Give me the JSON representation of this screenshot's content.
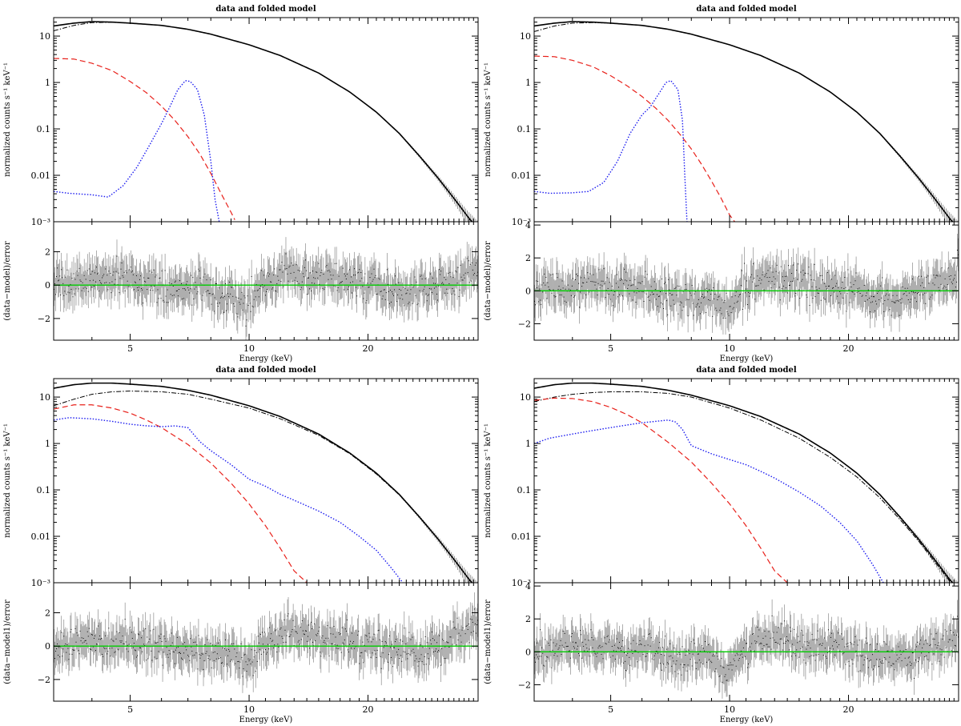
{
  "figure": {
    "description_panels": [
      "top-left",
      "top-right",
      "bottom-left",
      "bottom-right"
    ]
  },
  "colors": {
    "data": "#000000",
    "residual": "#8c8c8c",
    "comp_dashed": "#e8201a",
    "comp_dotted": "#1c1cf0",
    "zero_line": "#00cc00"
  },
  "chart_data": [
    {
      "type": "line",
      "panel": "top-left",
      "title": "data and folded model",
      "xlabel": "Energy (keV)",
      "ylabel_top": "normalized counts s⁻¹ keV⁻¹",
      "ylabel_bottom": "(data−model)/error",
      "xscale": "log",
      "yscale_top": "log",
      "xlim": [
        3.2,
        38
      ],
      "ylim_top": [
        0.001,
        25
      ],
      "ylim_bottom": [
        -3.3,
        3.8
      ],
      "x_ticks": [
        "5",
        "10",
        "20"
      ],
      "x_tick_values": [
        5,
        10,
        20
      ],
      "y_ticks_top": [
        "10",
        "1",
        "0.1",
        "0.01",
        "10⁻³"
      ],
      "y_tick_values_top": [
        10,
        1,
        0.1,
        0.01,
        0.001
      ],
      "y_ticks_bottom": [
        "2",
        "0",
        "−2"
      ],
      "y_tick_values_bottom": [
        2,
        0,
        -2
      ],
      "series": [
        {
          "name": "total",
          "style": "solid",
          "x": [
            3.2,
            3.6,
            4.0,
            4.5,
            5,
            6,
            7,
            8,
            10,
            12,
            15,
            18,
            21,
            24,
            27,
            30,
            33,
            36,
            38
          ],
          "y": [
            16.5,
            19,
            20.5,
            20,
            19,
            17,
            14,
            11,
            6.5,
            3.8,
            1.6,
            0.62,
            0.23,
            0.08,
            0.026,
            0.009,
            0.0032,
            0.0012,
            0.0007
          ]
        },
        {
          "name": "main-component",
          "style": "dashdot",
          "x": [
            3.2,
            3.6,
            4.0,
            4.5,
            5,
            6,
            7,
            8,
            10,
            12,
            15,
            18,
            21,
            24,
            27,
            30,
            33,
            36,
            38
          ],
          "y": [
            13,
            17,
            19.5,
            19.8,
            19,
            17,
            14,
            11,
            6.5,
            3.8,
            1.6,
            0.62,
            0.23,
            0.08,
            0.026,
            0.009,
            0.0032,
            0.0012,
            0.0007
          ]
        },
        {
          "name": "dashed-component",
          "style": "dashed",
          "x": [
            3.2,
            3.6,
            4.0,
            4.5,
            5,
            5.5,
            6,
            6.5,
            7,
            7.5,
            8,
            8.5,
            9,
            9.2
          ],
          "y": [
            3.3,
            3.2,
            2.6,
            1.8,
            1.05,
            0.6,
            0.31,
            0.15,
            0.068,
            0.029,
            0.011,
            0.004,
            0.0016,
            0.0011
          ]
        },
        {
          "name": "dotted-component",
          "style": "dotted",
          "x": [
            3.2,
            3.5,
            4.0,
            4.4,
            4.8,
            5.2,
            5.6,
            6.0,
            6.3,
            6.6,
            6.9,
            7.1,
            7.4,
            7.7,
            8.0,
            8.2,
            8.4
          ],
          "y": [
            0.0045,
            0.0041,
            0.0038,
            0.0034,
            0.006,
            0.015,
            0.045,
            0.13,
            0.3,
            0.7,
            1.1,
            1.05,
            0.7,
            0.2,
            0.02,
            0.003,
            0.001
          ]
        }
      ]
    },
    {
      "type": "line",
      "panel": "top-right",
      "title": "data and folded model",
      "xlabel": "Energy (keV)",
      "ylabel_top": "normalized counts s⁻¹ keV⁻¹",
      "ylabel_bottom": "(data−model)/error",
      "xscale": "log",
      "yscale_top": "log",
      "xlim": [
        3.2,
        38
      ],
      "ylim_top": [
        0.001,
        25
      ],
      "ylim_bottom": [
        -3.0,
        4.2
      ],
      "x_ticks": [
        "5",
        "10",
        "20"
      ],
      "x_tick_values": [
        5,
        10,
        20
      ],
      "y_ticks_top": [
        "10",
        "1",
        "0.1",
        "0.01",
        "10⁻³"
      ],
      "y_tick_values_top": [
        10,
        1,
        0.1,
        0.01,
        0.001
      ],
      "y_ticks_bottom": [
        "4",
        "2",
        "0",
        "−2"
      ],
      "y_tick_values_bottom": [
        4,
        2,
        0,
        -2
      ],
      "series": [
        {
          "name": "total",
          "style": "solid",
          "x": [
            3.2,
            3.6,
            4.0,
            4.5,
            5,
            6,
            7,
            8,
            10,
            12,
            15,
            18,
            21,
            24,
            27,
            30,
            33,
            36,
            38
          ],
          "y": [
            16.5,
            19,
            20.5,
            20,
            19,
            17,
            14,
            11,
            6.5,
            3.8,
            1.6,
            0.62,
            0.23,
            0.08,
            0.026,
            0.009,
            0.0032,
            0.0012,
            0.0007
          ]
        },
        {
          "name": "main-component",
          "style": "dashdot",
          "x": [
            3.2,
            3.6,
            4.0,
            4.5,
            5,
            6,
            7,
            8,
            10,
            12,
            15,
            18,
            21,
            24,
            27,
            30,
            33,
            36,
            38
          ],
          "y": [
            12.5,
            16.5,
            19,
            19.5,
            19,
            17,
            14,
            11,
            6.5,
            3.8,
            1.6,
            0.62,
            0.23,
            0.08,
            0.026,
            0.009,
            0.0032,
            0.0012,
            0.0007
          ]
        },
        {
          "name": "dashed-component",
          "style": "dashed",
          "x": [
            3.2,
            3.6,
            4.0,
            4.5,
            5,
            5.5,
            6,
            6.5,
            7,
            7.5,
            8,
            8.5,
            9,
            9.5,
            10,
            10.3
          ],
          "y": [
            3.7,
            3.6,
            3.0,
            2.2,
            1.4,
            0.85,
            0.5,
            0.28,
            0.15,
            0.075,
            0.037,
            0.017,
            0.0075,
            0.0033,
            0.0014,
            0.001
          ]
        },
        {
          "name": "dotted-component",
          "style": "dotted",
          "x": [
            3.2,
            3.5,
            4.0,
            4.4,
            4.8,
            5.2,
            5.6,
            6.0,
            6.3,
            6.6,
            6.9,
            7.1,
            7.4,
            7.6,
            7.7,
            7.8
          ],
          "y": [
            0.0045,
            0.0041,
            0.0042,
            0.0045,
            0.007,
            0.02,
            0.08,
            0.2,
            0.3,
            0.55,
            1.0,
            1.1,
            0.7,
            0.15,
            0.01,
            0.001
          ]
        }
      ]
    },
    {
      "type": "line",
      "panel": "bottom-left",
      "title": "data and folded model",
      "xlabel": "Energy (keV)",
      "ylabel_top": "normalized counts s⁻¹ keV⁻¹",
      "ylabel_bottom": "(data−model1)/error",
      "xscale": "log",
      "yscale_top": "log",
      "xlim": [
        3.2,
        38
      ],
      "ylim_top": [
        0.001,
        25
      ],
      "ylim_bottom": [
        -3.3,
        3.8
      ],
      "x_ticks": [
        "5",
        "10",
        "20"
      ],
      "x_tick_values": [
        5,
        10,
        20
      ],
      "y_ticks_top": [
        "10",
        "1",
        "0.1",
        "0.01",
        "10⁻³"
      ],
      "y_tick_values_top": [
        10,
        1,
        0.1,
        0.01,
        0.001
      ],
      "y_ticks_bottom": [
        "2",
        "0",
        "−2"
      ],
      "y_tick_values_bottom": [
        2,
        0,
        -2
      ],
      "series": [
        {
          "name": "total",
          "style": "solid",
          "x": [
            3.2,
            3.6,
            4.0,
            4.5,
            5,
            6,
            7,
            8,
            10,
            12,
            15,
            18,
            21,
            24,
            27,
            30,
            33,
            36,
            38
          ],
          "y": [
            15.5,
            18.5,
            20,
            20,
            19,
            17,
            14,
            11,
            6.5,
            3.8,
            1.6,
            0.62,
            0.23,
            0.08,
            0.026,
            0.009,
            0.0032,
            0.0012,
            0.0007
          ]
        },
        {
          "name": "main-component",
          "style": "dashdot",
          "x": [
            3.2,
            3.6,
            4.0,
            4.5,
            5,
            6,
            7,
            8,
            10,
            12,
            15,
            18,
            21,
            24,
            27,
            30,
            33,
            36,
            38
          ],
          "y": [
            6.5,
            9,
            11.5,
            13,
            13.5,
            13,
            11.5,
            9,
            5.8,
            3.4,
            1.5,
            0.6,
            0.22,
            0.078,
            0.026,
            0.009,
            0.0032,
            0.0012,
            0.0007
          ]
        },
        {
          "name": "dashed-component",
          "style": "dashed",
          "x": [
            3.2,
            3.6,
            4.0,
            4.5,
            5,
            5.5,
            6,
            7,
            8,
            9,
            10,
            11,
            12,
            13,
            14
          ],
          "y": [
            5.5,
            6.8,
            6.8,
            5.8,
            4.5,
            3.2,
            2.2,
            0.95,
            0.38,
            0.14,
            0.05,
            0.017,
            0.0055,
            0.0018,
            0.001
          ]
        },
        {
          "name": "dotted-component",
          "style": "dotted",
          "x": [
            3.2,
            3.5,
            4.0,
            4.5,
            5,
            5.5,
            6,
            6.5,
            7,
            7.5,
            8,
            9,
            10,
            11,
            12,
            13,
            15,
            17,
            19,
            21,
            23,
            24.5
          ],
          "y": [
            3.2,
            3.6,
            3.4,
            3.0,
            2.6,
            2.4,
            2.3,
            2.4,
            2.2,
            1.1,
            0.7,
            0.35,
            0.17,
            0.12,
            0.08,
            0.06,
            0.035,
            0.02,
            0.01,
            0.005,
            0.002,
            0.001
          ]
        }
      ]
    },
    {
      "type": "line",
      "panel": "bottom-right",
      "title": "data and folded model",
      "xlabel": "Energy (keV)",
      "ylabel_top": "normalized counts s⁻¹ keV⁻¹",
      "ylabel_bottom": "(data−model1)/error",
      "xscale": "log",
      "yscale_top": "log",
      "xlim": [
        3.2,
        38
      ],
      "ylim_top": [
        0.001,
        25
      ],
      "ylim_bottom": [
        -3.0,
        4.2
      ],
      "x_ticks": [
        "5",
        "10",
        "20"
      ],
      "x_tick_values": [
        5,
        10,
        20
      ],
      "y_ticks_top": [
        "10",
        "1",
        "0.1",
        "0.01",
        "10⁻³"
      ],
      "y_tick_values_top": [
        10,
        1,
        0.1,
        0.01,
        0.001
      ],
      "y_ticks_bottom": [
        "4",
        "2",
        "0",
        "−2"
      ],
      "y_tick_values_bottom": [
        4,
        2,
        0,
        -2
      ],
      "series": [
        {
          "name": "total",
          "style": "solid",
          "x": [
            3.2,
            3.6,
            4.0,
            4.5,
            5,
            6,
            7,
            8,
            10,
            12,
            15,
            18,
            21,
            24,
            27,
            30,
            33,
            36,
            38
          ],
          "y": [
            15.5,
            18.5,
            20,
            20,
            19,
            17,
            14,
            11,
            6.5,
            3.8,
            1.6,
            0.62,
            0.23,
            0.08,
            0.026,
            0.009,
            0.0032,
            0.0012,
            0.0007
          ]
        },
        {
          "name": "main-component",
          "style": "dashdot",
          "x": [
            3.2,
            3.6,
            4.0,
            4.5,
            5,
            6,
            7,
            8,
            10,
            12,
            15,
            18,
            21,
            24,
            27,
            30,
            33,
            36,
            38
          ],
          "y": [
            8,
            10,
            11.5,
            12.5,
            13,
            13,
            12,
            10,
            5.8,
            3.2,
            1.3,
            0.5,
            0.19,
            0.068,
            0.023,
            0.0082,
            0.0029,
            0.0011,
            0.0006
          ]
        },
        {
          "name": "dashed-component",
          "style": "dashed",
          "x": [
            3.2,
            3.6,
            4.0,
            4.5,
            5,
            5.5,
            6,
            7,
            8,
            9,
            10,
            11,
            12,
            13,
            14
          ],
          "y": [
            8.5,
            9.5,
            9.3,
            8.0,
            6.0,
            4.2,
            2.8,
            1.05,
            0.4,
            0.14,
            0.05,
            0.017,
            0.0055,
            0.0018,
            0.001
          ]
        },
        {
          "name": "dotted-component",
          "style": "dotted",
          "x": [
            3.2,
            3.5,
            4.0,
            4.5,
            5,
            5.5,
            6,
            6.5,
            7,
            7.3,
            7.6,
            8,
            9,
            10,
            11,
            12,
            13,
            15,
            17,
            19,
            21,
            23,
            24.5
          ],
          "y": [
            1.0,
            1.3,
            1.6,
            1.9,
            2.2,
            2.5,
            2.8,
            3.0,
            3.2,
            2.9,
            2.0,
            0.9,
            0.6,
            0.45,
            0.35,
            0.25,
            0.18,
            0.09,
            0.045,
            0.02,
            0.008,
            0.0025,
            0.001
          ]
        }
      ]
    }
  ]
}
